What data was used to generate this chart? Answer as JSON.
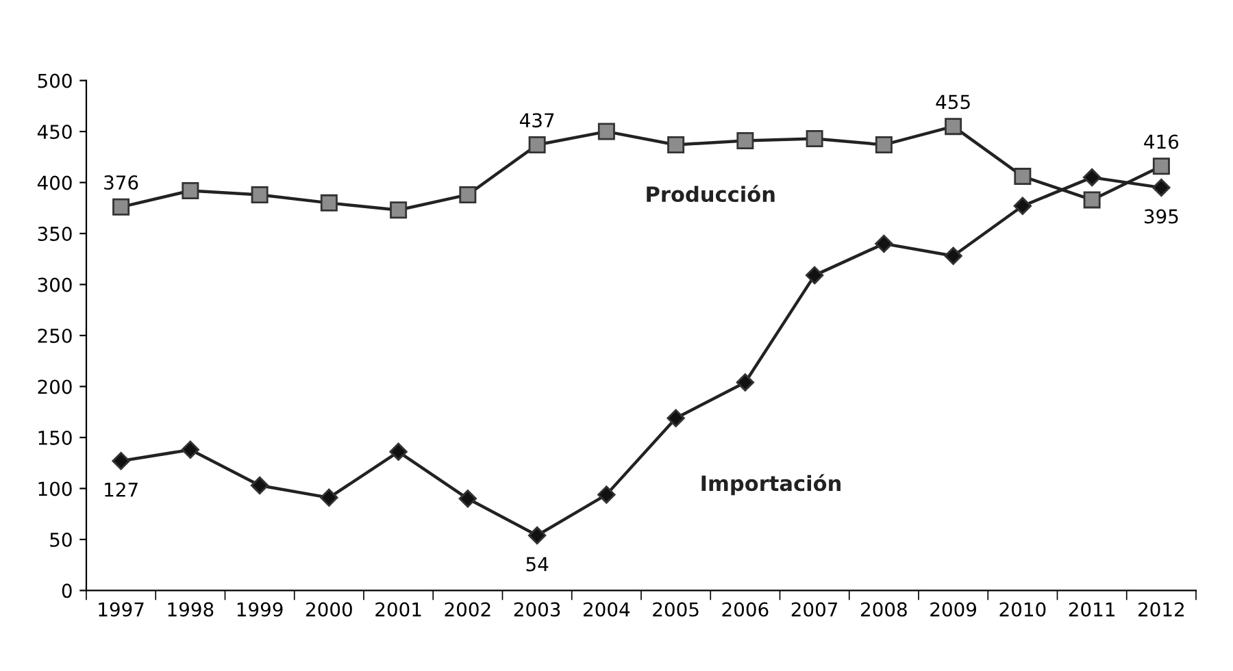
{
  "chart_data": {
    "type": "line",
    "categories": [
      "1997",
      "1998",
      "1999",
      "2000",
      "2001",
      "2002",
      "2003",
      "2004",
      "2005",
      "2006",
      "2007",
      "2008",
      "2009",
      "2010",
      "2011",
      "2012"
    ],
    "ylim": [
      0,
      500
    ],
    "yticks": [
      0,
      50,
      100,
      150,
      200,
      250,
      300,
      350,
      400,
      450,
      500
    ],
    "grid": false,
    "legend": false,
    "series": [
      {
        "name": "Producción",
        "color": "#8c8c8c",
        "marker": "square",
        "values": [
          376,
          392,
          388,
          380,
          373,
          388,
          437,
          450,
          437,
          441,
          443,
          437,
          455,
          406,
          383,
          416
        ],
        "value_labels": [
          "376",
          null,
          null,
          null,
          null,
          null,
          "437",
          null,
          null,
          null,
          null,
          null,
          "455",
          null,
          null,
          "416"
        ]
      },
      {
        "name": "Importación",
        "color": "#111111",
        "marker": "diamond",
        "values": [
          127,
          138,
          103,
          91,
          136,
          90,
          54,
          94,
          169,
          204,
          309,
          340,
          328,
          377,
          405,
          395
        ],
        "value_labels": [
          "127",
          null,
          null,
          null,
          null,
          null,
          "54",
          null,
          null,
          null,
          null,
          null,
          null,
          null,
          null,
          "395"
        ]
      }
    ]
  }
}
